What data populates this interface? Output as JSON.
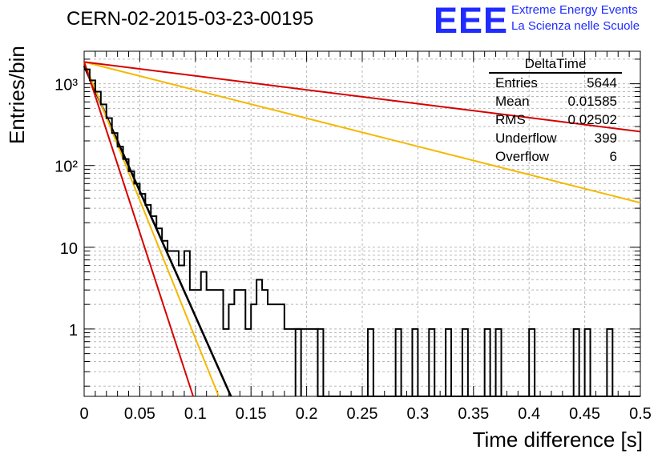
{
  "title": "CERN-02-2015-03-23-00195",
  "logo": {
    "mark": "EEE",
    "line1": "Extreme Energy Events",
    "line2": "La Scienza nelle Scuole",
    "color": "#1f2bff"
  },
  "stats_box": {
    "title": "DeltaTime",
    "rows": [
      {
        "label": "Entries",
        "value": "5644"
      },
      {
        "label": "Mean",
        "value": "0.01585"
      },
      {
        "label": "RMS",
        "value": "0.02502"
      },
      {
        "label": "Underflow",
        "value": "399"
      },
      {
        "label": "Overflow",
        "value": "6"
      }
    ]
  },
  "chart_data": {
    "type": "line",
    "title": "CERN-02-2015-03-23-00195",
    "xlabel": "Time difference [s]",
    "ylabel": "Entries/bin",
    "xlim": [
      0,
      0.5
    ],
    "ylim": [
      0.15,
      2500
    ],
    "log_y": true,
    "grid": true,
    "x_ticks": [
      "0",
      "0.05",
      "0.1",
      "0.15",
      "0.2",
      "0.25",
      "0.3",
      "0.35",
      "0.4",
      "0.45",
      "0.5"
    ],
    "y_ticks": [
      "1",
      "10",
      "10²",
      "10³"
    ],
    "histogram": {
      "bin_width": 0.005,
      "values": [
        1500,
        1100,
        800,
        560,
        380,
        250,
        170,
        120,
        85,
        60,
        45,
        33,
        24,
        17,
        12,
        9,
        9,
        6,
        9,
        3,
        3,
        5,
        3,
        3,
        3,
        1,
        2,
        3,
        3,
        1,
        2,
        4,
        3,
        2,
        2,
        2,
        1,
        1,
        1,
        1,
        1,
        1,
        0,
        0,
        0,
        0,
        0,
        0,
        0,
        0,
        0,
        0,
        0,
        0,
        0,
        0,
        0,
        0,
        0,
        0,
        0,
        0,
        0,
        0,
        0,
        0,
        0,
        0,
        0,
        0,
        0,
        0,
        0,
        0,
        0,
        0,
        0,
        0,
        0,
        0,
        0,
        0,
        0,
        0,
        0,
        0,
        0,
        0,
        0,
        0,
        0,
        0,
        0,
        0,
        0,
        0,
        0,
        0,
        0,
        0
      ],
      "ones_at": [
        0.19,
        0.21,
        0.255,
        0.28,
        0.295,
        0.31,
        0.325,
        0.34,
        0.36,
        0.37,
        0.4,
        0.44,
        0.45,
        0.47
      ],
      "color": "#000000"
    },
    "series": [
      {
        "name": "",
        "color": "#000000",
        "points": [
          [
            0.0,
            1650
          ],
          [
            0.132,
            0.15
          ]
        ]
      },
      {
        "name": "",
        "color": "#f5b800",
        "points": [
          [
            0.0,
            1850
          ],
          [
            0.121,
            0.15
          ]
        ]
      },
      {
        "name": "",
        "color": "#d60000",
        "points": [
          [
            0.0,
            1850
          ],
          [
            0.098,
            0.15
          ]
        ]
      },
      {
        "name": "",
        "color": "#f5b800",
        "points": [
          [
            0.0,
            1850
          ],
          [
            0.5,
            35
          ]
        ]
      },
      {
        "name": "",
        "color": "#d60000",
        "points": [
          [
            0.0,
            1850
          ],
          [
            0.5,
            260
          ]
        ]
      }
    ]
  }
}
